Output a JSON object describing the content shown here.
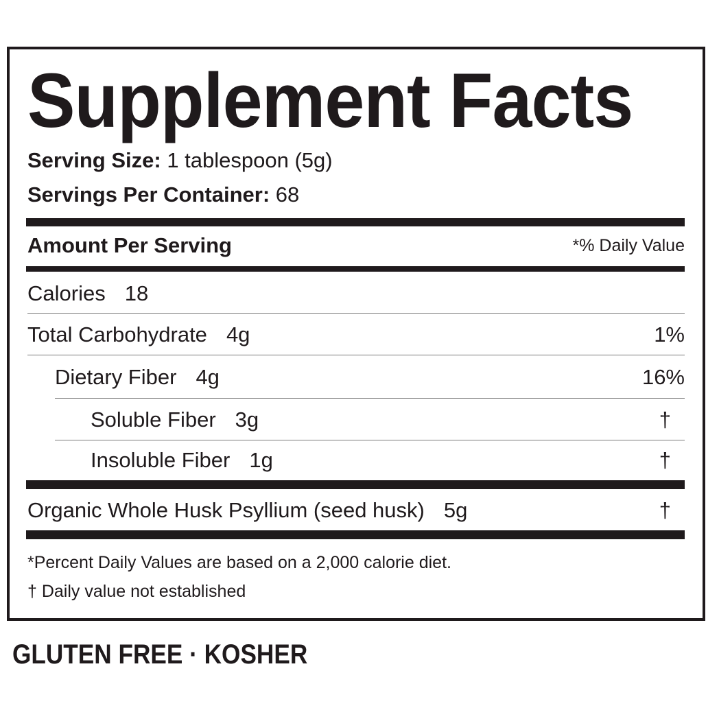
{
  "title": "Supplement Facts",
  "serving_size": {
    "label": "Serving Size:",
    "value": "1 tablespoon (5g)"
  },
  "servings_per_container": {
    "label": "Servings Per Container:",
    "value": "68"
  },
  "header": {
    "amount_per_serving": "Amount Per Serving",
    "daily_value": "*% Daily Value"
  },
  "rows": [
    {
      "name": "Calories",
      "amount": "18",
      "dv": ""
    },
    {
      "name": "Total Carbohydrate",
      "amount": "4g",
      "dv": "1%"
    },
    {
      "name": "Dietary Fiber",
      "amount": "4g",
      "dv": "16%"
    },
    {
      "name": "Soluble Fiber",
      "amount": "3g",
      "dv": "†"
    },
    {
      "name": "Insoluble Fiber",
      "amount": "1g",
      "dv": "†"
    },
    {
      "name": "Organic Whole Husk Psyllium (seed husk)",
      "amount": "5g",
      "dv": "†"
    }
  ],
  "footnotes": [
    "*Percent Daily Values are based on a 2,000 calorie diet.",
    "† Daily value not established"
  ],
  "claims": "GLUTEN FREE · KOSHER"
}
